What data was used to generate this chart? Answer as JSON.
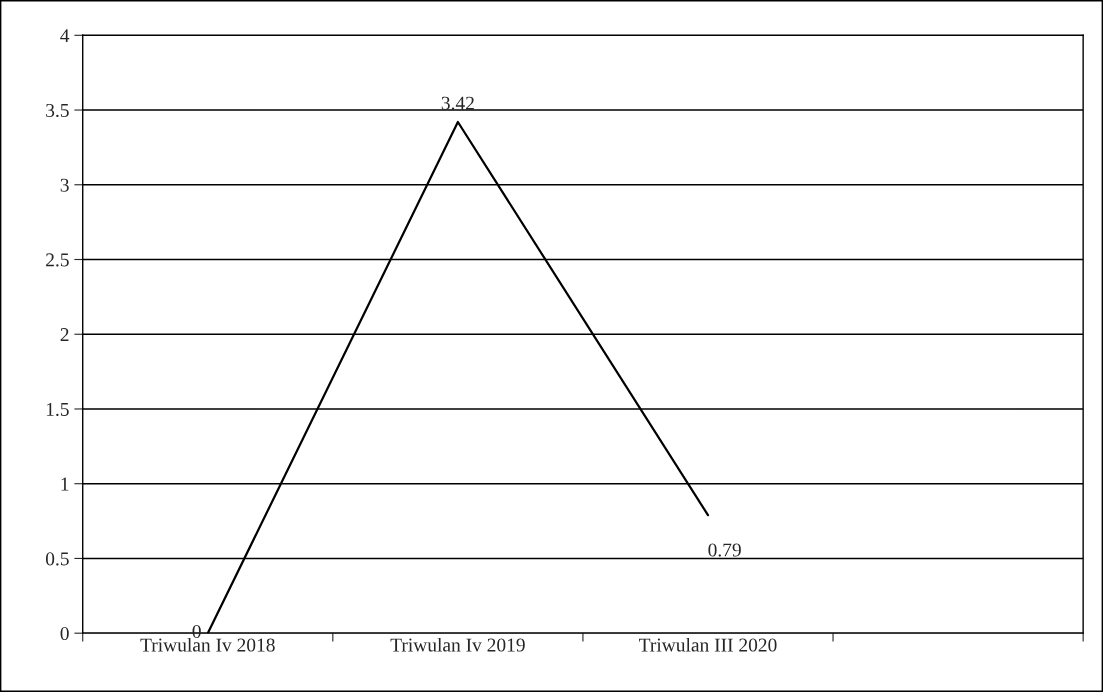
{
  "chart_data": {
    "type": "line",
    "categories": [
      "Triwulan Iv 2018",
      "Triwulan Iv 2019",
      "Triwulan III 2020",
      null
    ],
    "series": [
      {
        "color": "#000000",
        "values": [
          0,
          3.42,
          0.79,
          null
        ]
      }
    ],
    "ylim": [
      0,
      4
    ],
    "yticks": [
      0,
      0.5,
      1,
      1.5,
      2,
      2.5,
      3,
      3.5,
      4
    ],
    "grid": "y",
    "data_labels": true,
    "marker": "none",
    "line_style": "solid",
    "legend": false
  }
}
